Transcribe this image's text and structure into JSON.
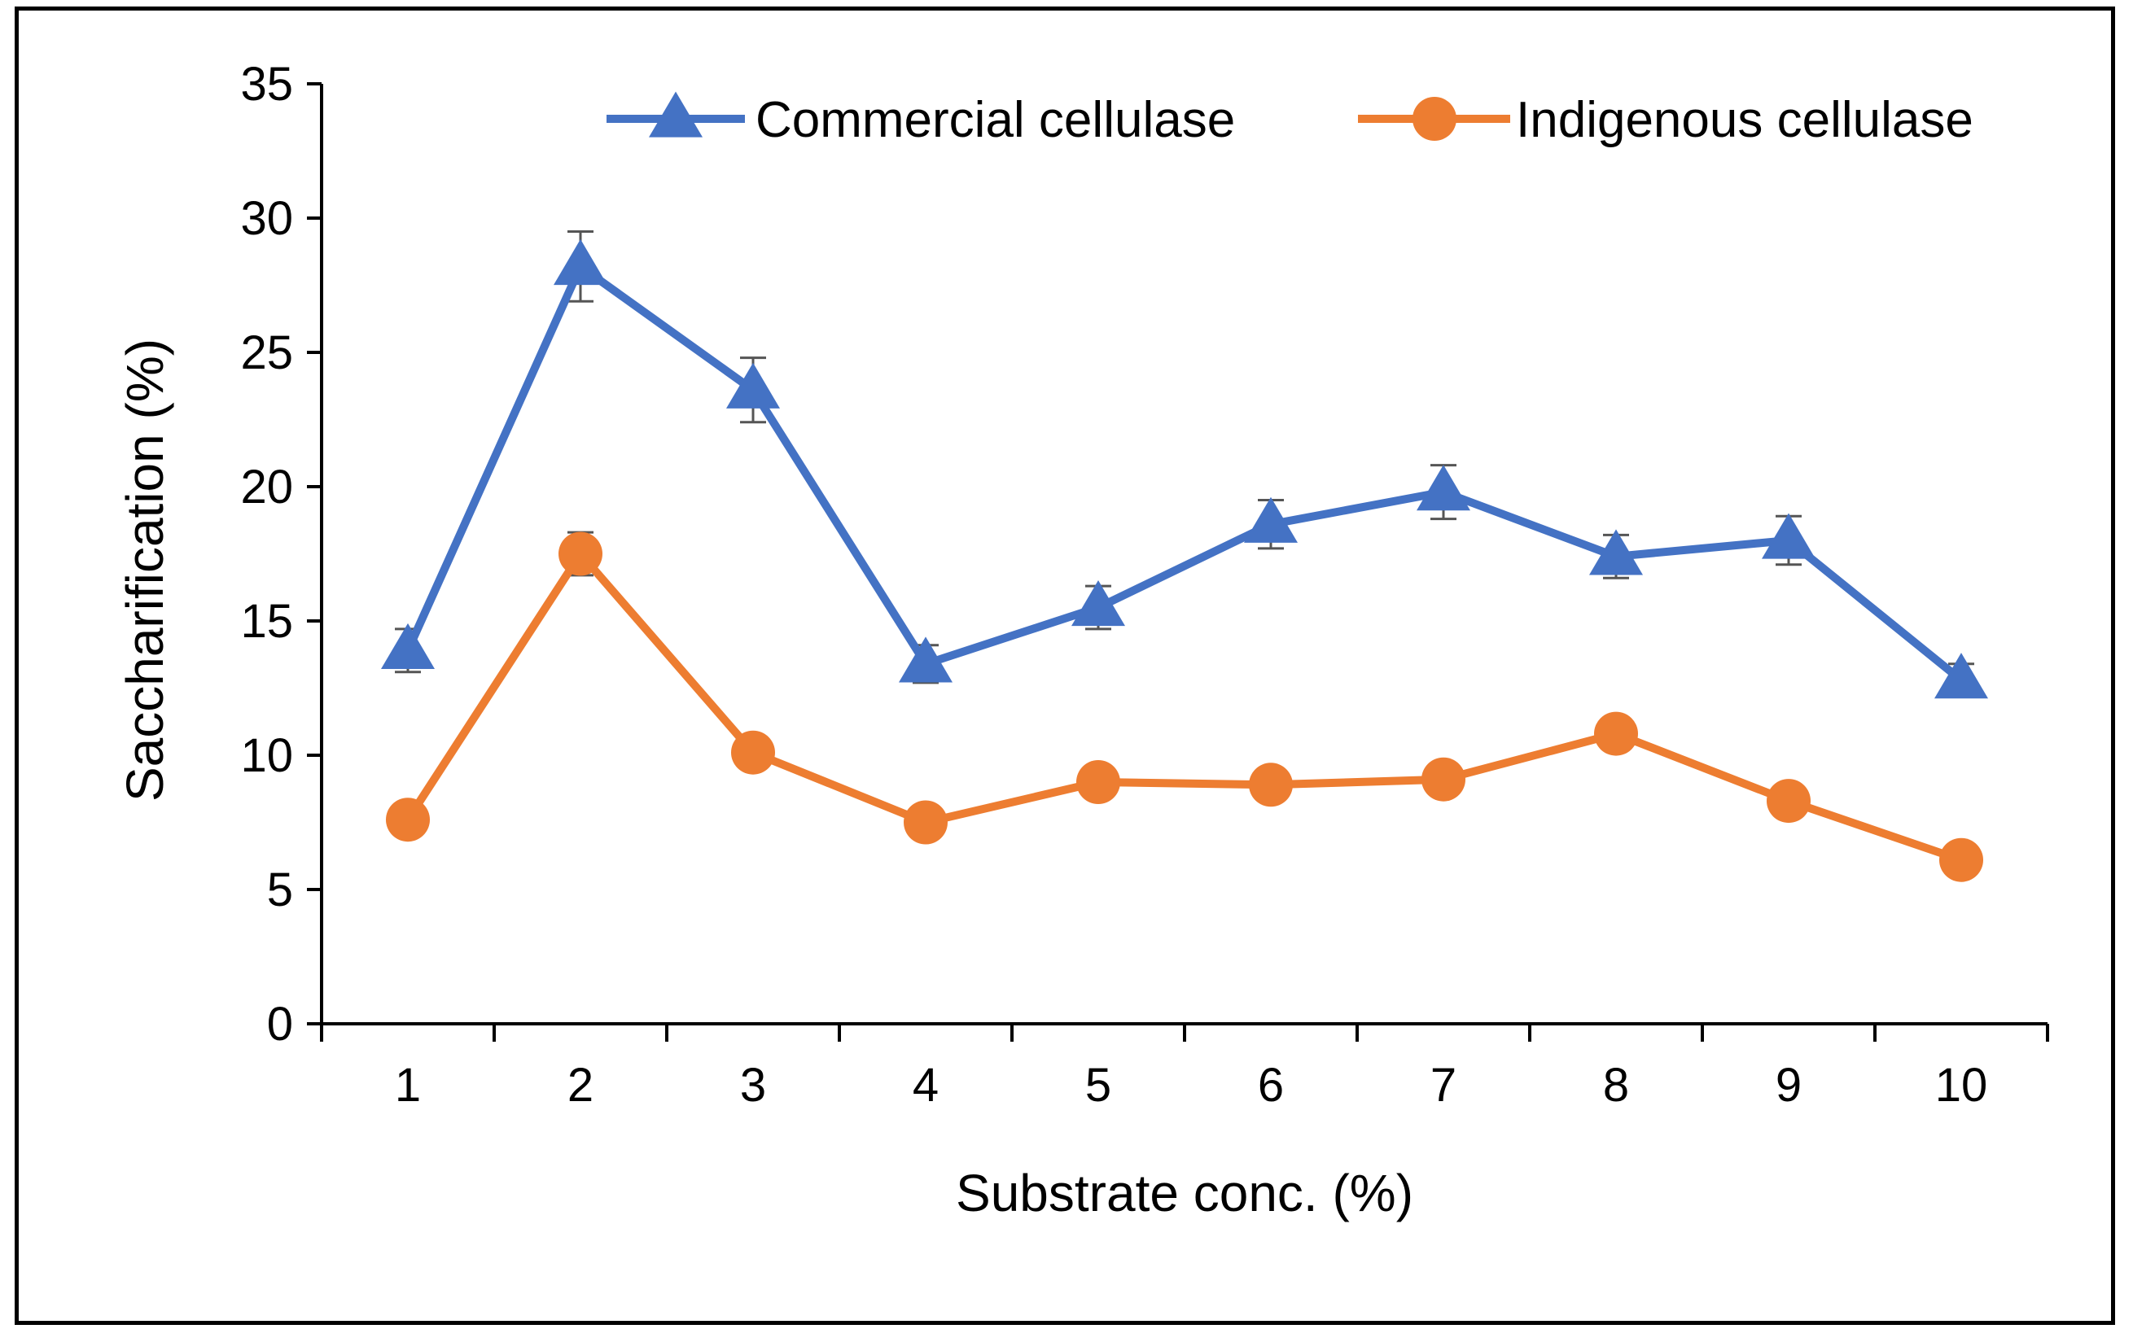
{
  "chart_data": {
    "type": "line",
    "title": "",
    "xlabel": "Substrate conc. (%)",
    "ylabel": "Saccharification (%)",
    "categories": [
      "1",
      "2",
      "3",
      "4",
      "5",
      "6",
      "7",
      "8",
      "9",
      "10"
    ],
    "ylim": [
      0,
      35
    ],
    "yticks": [
      0,
      5,
      10,
      15,
      20,
      25,
      30,
      35
    ],
    "grid": false,
    "legend_position": "top-right",
    "series": [
      {
        "name": "Commercial cellulase",
        "color": "#4472C4",
        "marker": "triangle",
        "values": [
          13.9,
          28.2,
          23.6,
          13.4,
          15.5,
          18.6,
          19.8,
          17.4,
          18.0,
          12.8
        ],
        "errors": [
          0.8,
          1.3,
          1.2,
          0.7,
          0.8,
          0.9,
          1.0,
          0.8,
          0.9,
          0.6
        ]
      },
      {
        "name": "Indigenous cellulase",
        "color": "#ED7D31",
        "marker": "circle",
        "values": [
          7.6,
          17.5,
          10.1,
          7.5,
          9.0,
          8.9,
          9.1,
          10.8,
          8.3,
          6.1
        ],
        "errors": [
          0.3,
          0.8,
          0.3,
          0.3,
          0.3,
          0.3,
          0.3,
          0.4,
          0.3,
          0.3
        ]
      }
    ]
  }
}
